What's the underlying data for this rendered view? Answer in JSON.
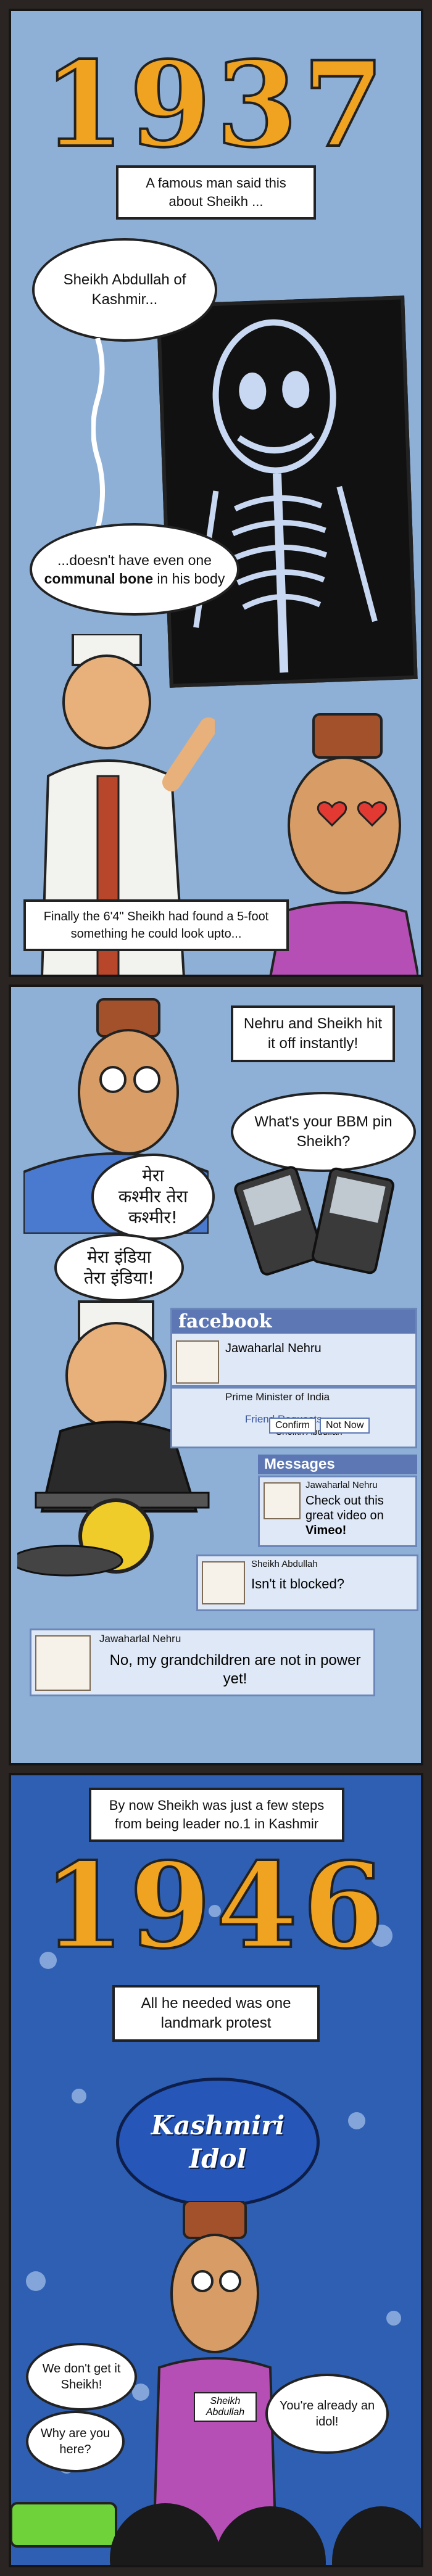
{
  "panel1": {
    "year": "1937",
    "caption_top": "A famous man said this about Sheikh ...",
    "bubble1": "Sheikh Abdullah of Kashmir...",
    "bubble2_pre": "...doesn't have even one ",
    "bubble2_bold": "communal bone",
    "bubble2_post": " in his body",
    "caption_bottom": "Finally the 6'4\" Sheikh had found a 5-foot something he could look upto..."
  },
  "panel2": {
    "caption_top": "Nehru and Sheikh hit it off instantly!",
    "bubble_bbm": "What's your BBM pin Sheikh?",
    "hindi1_line1": "मेरा",
    "hindi1_line2": "कश्मीर तेरा",
    "hindi1_line3": "कश्मीर!",
    "hindi2_line1": "मेरा इंडिया",
    "hindi2_line2": "तेरा इंडिया!",
    "fb": {
      "title": "facebook",
      "profile_name": "Jawaharlal Nehru",
      "profile_title": "Prime Minister of India",
      "friend_requests": "Friend Requests",
      "request_name": "Sheikh Abdullah",
      "confirm": "Confirm",
      "not_now": "Not Now",
      "messages": "Messages",
      "msg1_name": "Jawaharlal Nehru",
      "msg1_text": "Check out this great video on",
      "msg1_bold": "Vimeo!",
      "msg2_name": "Sheikh Abdullah",
      "msg2_text": "Isn't it blocked?",
      "msg3_name": "Jawaharlal Nehru",
      "msg3_text": "No, my grandchildren are not in power yet!"
    }
  },
  "panel3": {
    "caption_top": "By now Sheikh was just a few steps from being leader no.1 in Kashmir",
    "year": "1946",
    "caption_mid": "All he needed was one landmark protest",
    "logo_line1": "Kashmiri",
    "logo_line2": "Idol",
    "badge": "Sheikh Abdullah",
    "bubble_left1": "We don't get it Sheikh!",
    "bubble_left2": "Why are you here?",
    "bubble_right": "You're already an idol!"
  },
  "colors": {
    "frame": "#151515",
    "sky": "#8fb0d6",
    "night": "#2f5fb2",
    "year": "#f0a321",
    "facebook": "#5c77b3"
  }
}
